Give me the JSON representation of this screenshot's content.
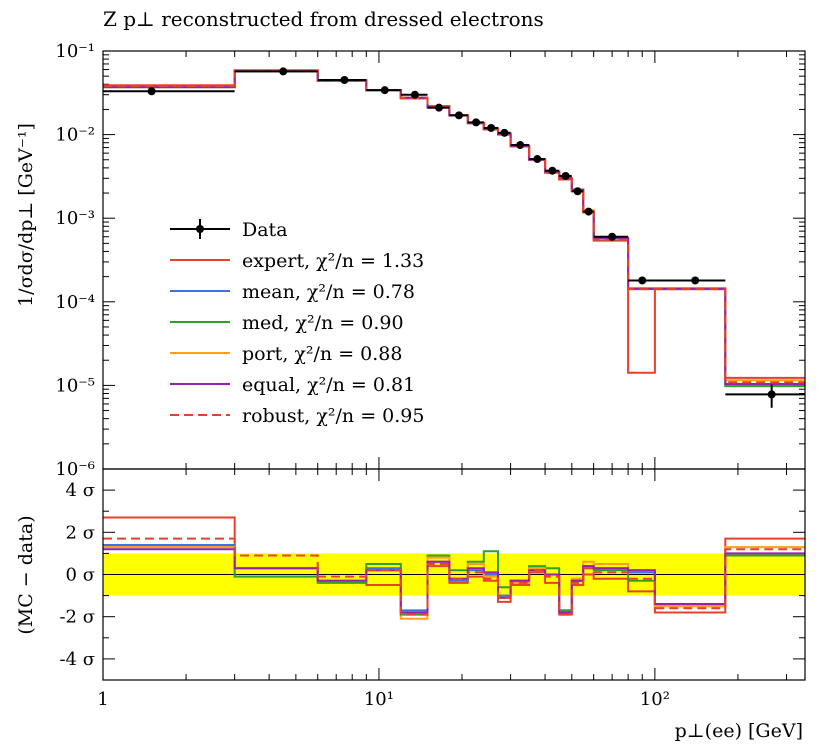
{
  "chart_data": [
    {
      "type": "line",
      "title": "Z p⊥ reconstructed from dressed electrons",
      "ylabel": "1/σdσ/dp⊥ [GeV⁻¹]",
      "xlabel": "",
      "xscale": "log",
      "yscale": "log",
      "xlim": [
        1,
        350
      ],
      "ylim": [
        1e-06,
        0.1
      ],
      "x_ticks": [
        {
          "value": 1,
          "label": "1"
        },
        {
          "value": 10,
          "label": "10¹"
        },
        {
          "value": 100,
          "label": "10²"
        }
      ],
      "y_ticks": [
        {
          "value": 0.1,
          "label": "10⁻¹"
        },
        {
          "value": 0.01,
          "label": "10⁻²"
        },
        {
          "value": 0.001,
          "label": "10⁻³"
        },
        {
          "value": 0.0001,
          "label": "10⁻⁴"
        },
        {
          "value": 1e-05,
          "label": "10⁻⁵"
        },
        {
          "value": 1e-06,
          "label": "10⁻⁶"
        }
      ],
      "bin_edges": [
        1,
        3,
        6,
        9,
        12,
        15,
        18,
        21,
        24,
        27,
        30,
        35,
        40,
        45,
        50,
        55,
        60,
        80,
        100,
        180,
        350
      ],
      "data_points": {
        "name": "Data",
        "x": [
          1.5,
          4.5,
          7.5,
          10.5,
          13.5,
          16.5,
          19.5,
          22.5,
          25.5,
          28.5,
          32.5,
          37.5,
          42.5,
          47.5,
          52.5,
          57.5,
          70,
          90,
          140,
          265
        ],
        "y": [
          0.033,
          0.057,
          0.045,
          0.034,
          0.03,
          0.021,
          0.017,
          0.014,
          0.012,
          0.0105,
          0.0075,
          0.0051,
          0.0037,
          0.0032,
          0.0021,
          0.0012,
          0.0006,
          0.00018,
          0.00018,
          7.8e-06
        ],
        "yerr_low": [
          0,
          0,
          0,
          0,
          0,
          0,
          0,
          0,
          0,
          0,
          0,
          0,
          0,
          0,
          0,
          0,
          0,
          0,
          0,
          2.4e-06
        ],
        "yerr_high": [
          0,
          0,
          0,
          0,
          0,
          0,
          0,
          0,
          0,
          0,
          0,
          0,
          0,
          0,
          0,
          0,
          0,
          0,
          0,
          2.4e-06
        ]
      },
      "series": [
        {
          "name": "expert",
          "chi2": "1.33",
          "color": "#e8402a",
          "dash": false,
          "values": [
            0.039,
            0.059,
            0.045,
            0.034,
            0.027,
            0.021,
            0.017,
            0.0137,
            0.0115,
            0.01,
            0.0072,
            0.005,
            0.0035,
            0.0029,
            0.0021,
            0.00118,
            0.00054,
            1.42e-05,
            0.000142,
            1.23e-05
          ]
        },
        {
          "name": "mean",
          "chi2": "0.78",
          "color": "#3b74d8",
          "dash": false,
          "values": [
            0.037,
            0.058,
            0.044,
            0.034,
            0.0275,
            0.0215,
            0.017,
            0.0138,
            0.0116,
            0.0101,
            0.0073,
            0.005,
            0.0036,
            0.003,
            0.0022,
            0.0012,
            0.00056,
            0.000145,
            0.000145,
            1.03e-05
          ]
        },
        {
          "name": "med",
          "chi2": "0.90",
          "color": "#2ea02c",
          "dash": false,
          "values": [
            0.037,
            0.057,
            0.044,
            0.034,
            0.0278,
            0.022,
            0.017,
            0.0137,
            0.0119,
            0.0103,
            0.0074,
            0.0051,
            0.0036,
            0.003,
            0.0022,
            0.0012,
            0.00056,
            0.000142,
            0.000142,
            9.8e-06
          ]
        },
        {
          "name": "port",
          "chi2": "0.88",
          "color": "#ff9f1a",
          "dash": false,
          "values": [
            0.037,
            0.058,
            0.044,
            0.034,
            0.0276,
            0.0218,
            0.017,
            0.0138,
            0.0116,
            0.0101,
            0.0073,
            0.005,
            0.0036,
            0.003,
            0.0022,
            0.00125,
            0.00057,
            0.000146,
            0.000146,
            1.15e-05
          ]
        },
        {
          "name": "equal",
          "chi2": "0.81",
          "color": "#9a1fb0",
          "dash": false,
          "values": [
            0.037,
            0.058,
            0.044,
            0.034,
            0.0276,
            0.0216,
            0.017,
            0.0138,
            0.0116,
            0.0101,
            0.0073,
            0.005,
            0.0036,
            0.003,
            0.0022,
            0.0012,
            0.00058,
            0.000143,
            0.000143,
            1.04e-05
          ]
        },
        {
          "name": "robust",
          "chi2": "0.95",
          "color": "#e8402a",
          "dash": true,
          "values": [
            0.038,
            0.058,
            0.044,
            0.034,
            0.0274,
            0.0214,
            0.017,
            0.0137,
            0.0115,
            0.01,
            0.0072,
            0.005,
            0.0035,
            0.0029,
            0.0021,
            0.00118,
            0.00055,
            0.000142,
            0.000142,
            1.09e-05
          ]
        }
      ],
      "legend_placement": "center-left",
      "legend_label_prefix": "χ²/n = "
    },
    {
      "type": "line",
      "title": "",
      "ylabel": "(MC − data)",
      "xlabel": "p⊥(ee) [GeV]",
      "xscale": "log",
      "xlim": [
        1,
        350
      ],
      "ylim": [
        -5,
        5
      ],
      "x_ticks": [
        {
          "value": 1,
          "label": "1"
        },
        {
          "value": 10,
          "label": "10¹"
        },
        {
          "value": 100,
          "label": "10²"
        }
      ],
      "y_ticks": [
        {
          "value": 4,
          "label": "4 σ"
        },
        {
          "value": 2,
          "label": "2 σ"
        },
        {
          "value": 0,
          "label": "0 σ"
        },
        {
          "value": -2,
          "label": "-2 σ"
        },
        {
          "value": -4,
          "label": "-4 σ"
        }
      ],
      "band": {
        "low": -1,
        "high": 1,
        "color": "#ffff00"
      },
      "bin_edges": [
        1,
        3,
        6,
        9,
        12,
        15,
        18,
        21,
        24,
        27,
        30,
        35,
        40,
        45,
        50,
        55,
        60,
        80,
        100,
        180,
        350
      ],
      "series": [
        {
          "name": "expert",
          "color": "#e8402a",
          "dash": false,
          "values": [
            2.7,
            0.3,
            -0.3,
            -0.5,
            -1.8,
            0.4,
            -0.4,
            -0.1,
            -0.3,
            -1.3,
            -0.5,
            0.1,
            -0.4,
            -1.9,
            -0.5,
            0.0,
            -0.2,
            -0.8,
            -1.8,
            1.7
          ]
        },
        {
          "name": "mean",
          "color": "#3b74d8",
          "dash": false,
          "values": [
            1.4,
            0.3,
            -0.3,
            0.3,
            -1.7,
            0.6,
            -0.3,
            0.2,
            0.0,
            -1.0,
            -0.3,
            0.3,
            0.0,
            -1.7,
            -0.3,
            0.4,
            0.3,
            0.1,
            -1.5,
            0.9
          ]
        },
        {
          "name": "med",
          "color": "#2ea02c",
          "dash": false,
          "values": [
            1.3,
            -0.1,
            -0.4,
            0.5,
            -1.9,
            0.9,
            0.2,
            0.6,
            1.1,
            -0.6,
            -0.3,
            0.4,
            0.3,
            -1.7,
            -0.3,
            0.3,
            0.2,
            -0.3,
            -1.5,
            0.9
          ]
        },
        {
          "name": "port",
          "color": "#ff9f1a",
          "dash": false,
          "values": [
            1.3,
            0.3,
            -0.3,
            0.2,
            -2.1,
            0.8,
            -0.2,
            0.5,
            -0.1,
            -1.1,
            -0.4,
            0.3,
            0.0,
            -1.8,
            -0.2,
            0.6,
            0.5,
            0.2,
            -1.5,
            1.3
          ]
        },
        {
          "name": "equal",
          "color": "#9a1fb0",
          "dash": false,
          "values": [
            1.2,
            0.3,
            -0.3,
            0.2,
            -1.8,
            0.6,
            -0.2,
            0.3,
            0.1,
            -1.1,
            -0.3,
            0.2,
            0.0,
            -1.8,
            -0.3,
            0.4,
            0.3,
            0.2,
            -1.4,
            1.0
          ]
        },
        {
          "name": "robust",
          "color": "#e8402a",
          "dash": true,
          "values": [
            1.7,
            0.9,
            -0.1,
            0.2,
            -1.9,
            0.5,
            -0.2,
            0.1,
            -0.2,
            -1.1,
            -0.4,
            0.2,
            -0.1,
            -1.9,
            -0.4,
            0.3,
            0.1,
            -0.2,
            -1.6,
            1.2
          ]
        }
      ]
    }
  ]
}
